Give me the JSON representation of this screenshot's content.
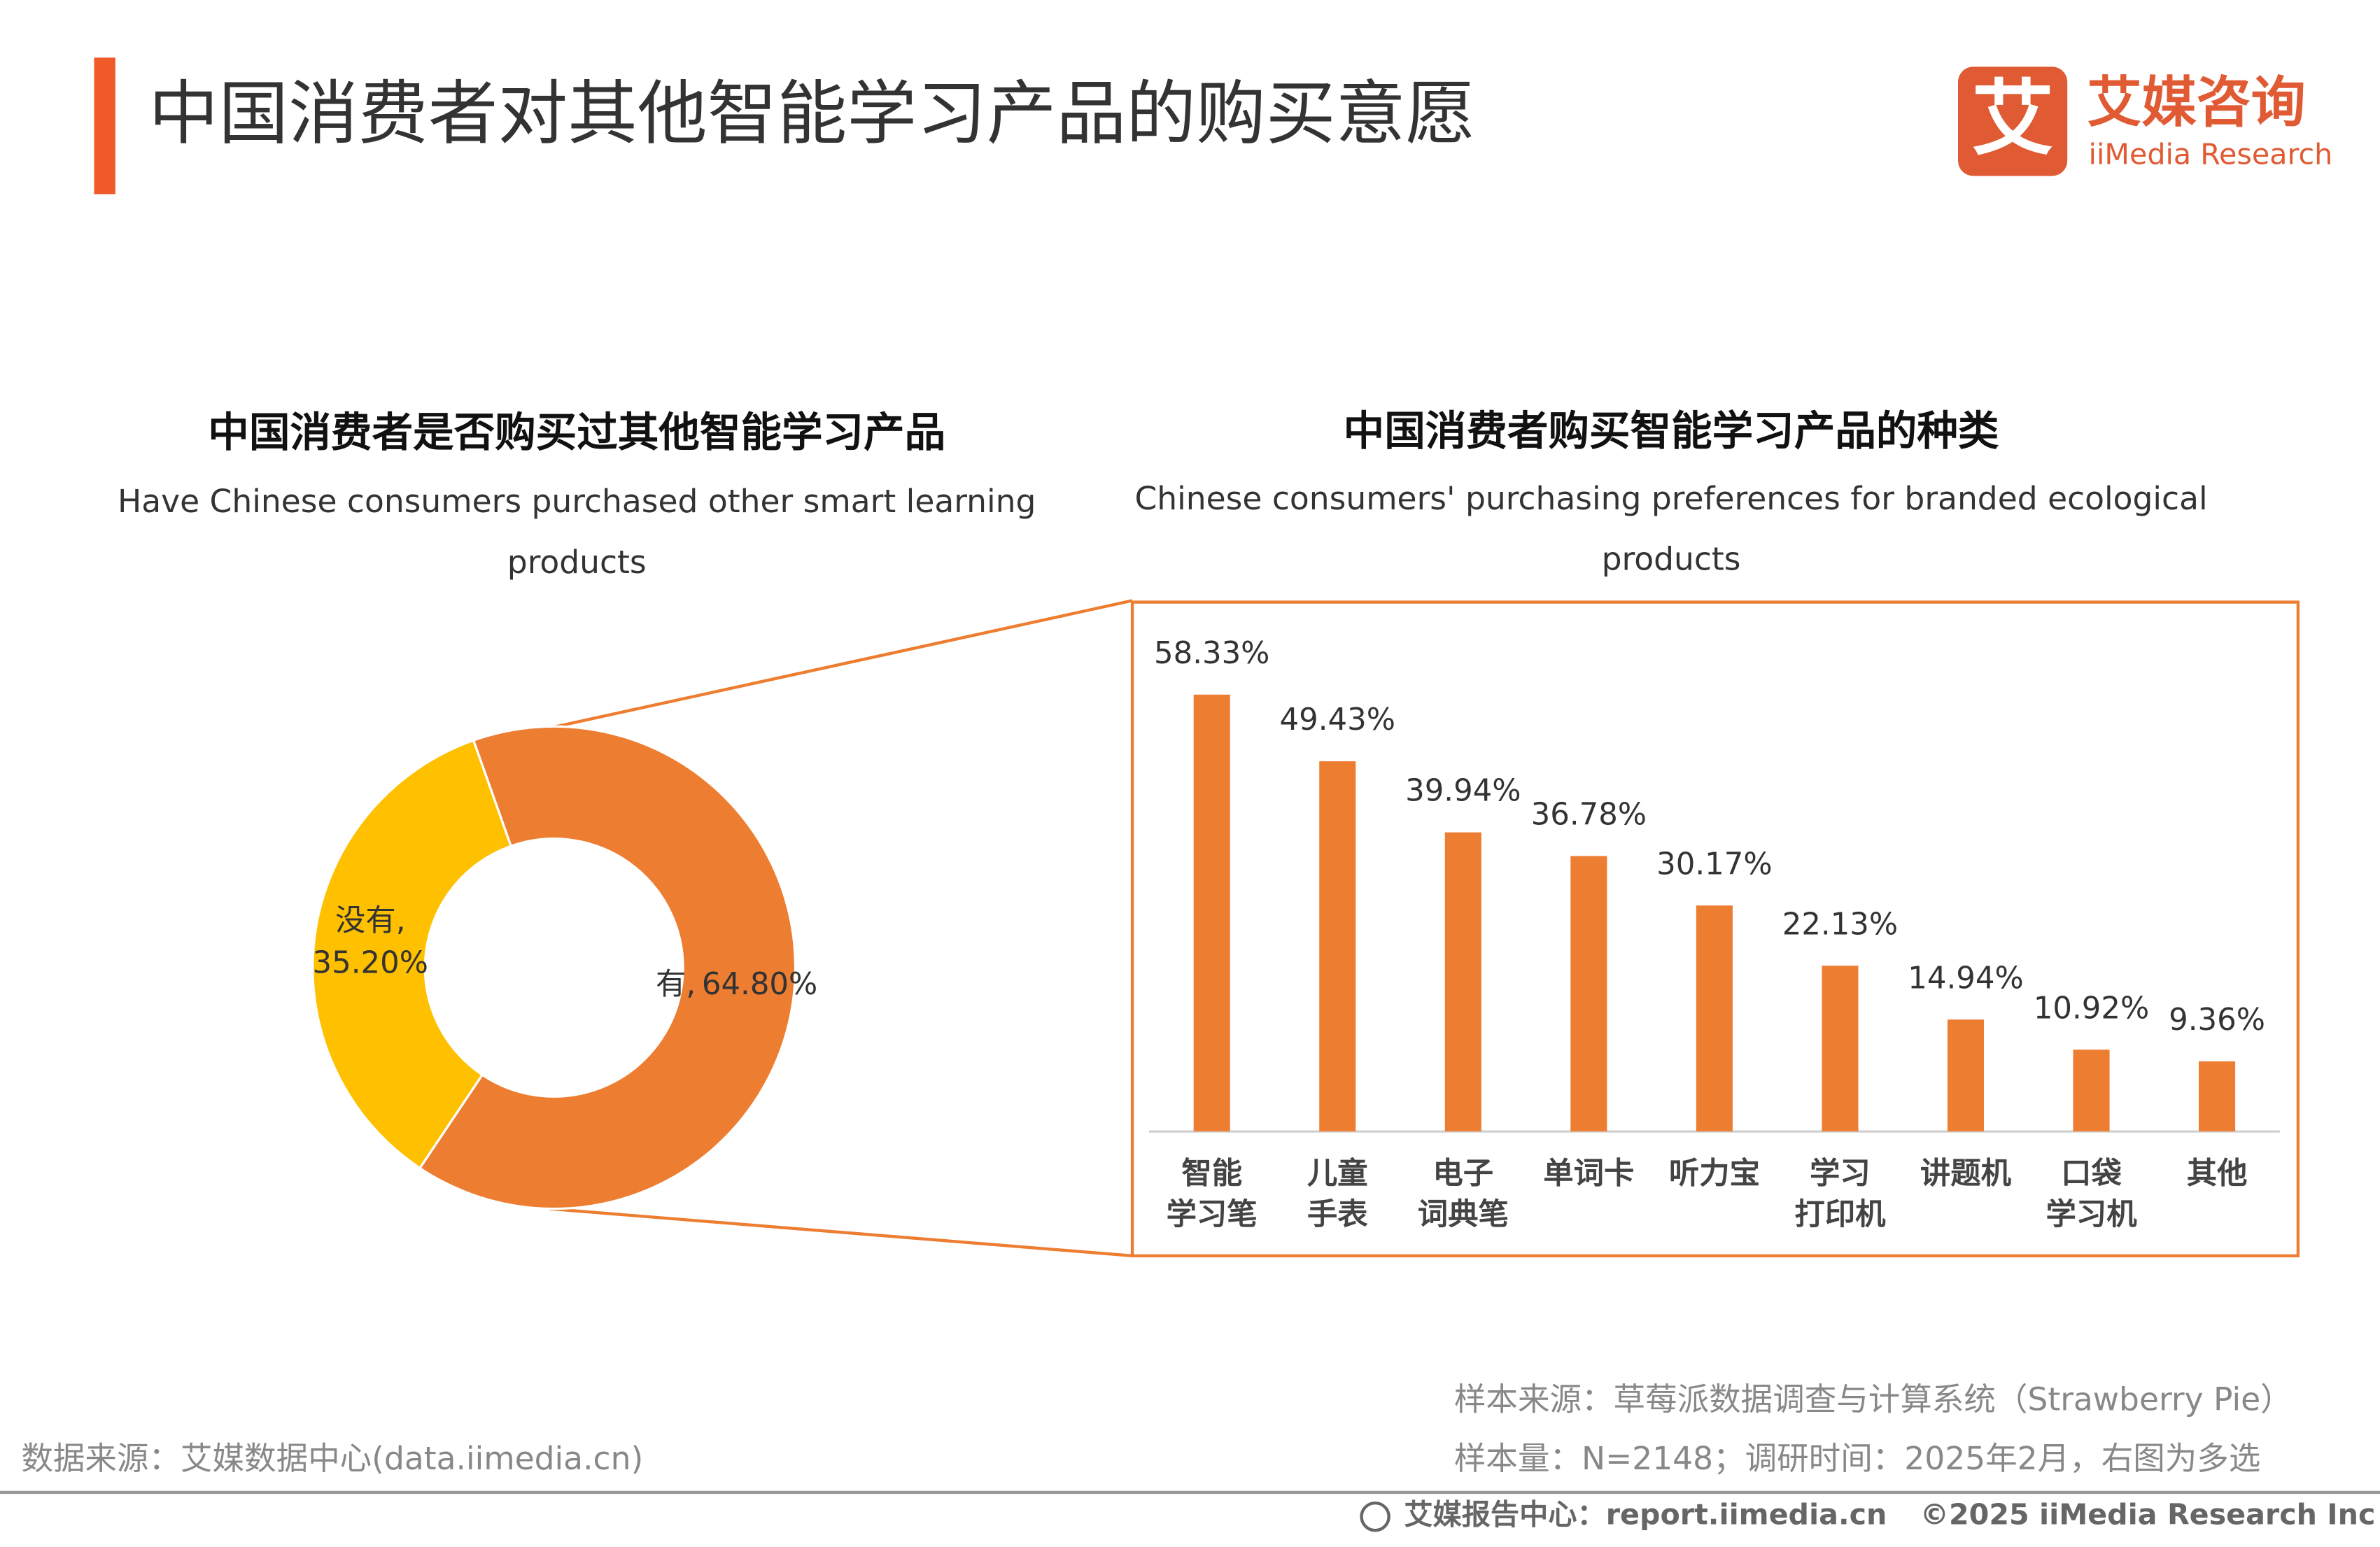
{
  "header": {
    "title": "中国消费者对其他智能学习产品的购买意愿",
    "logo_icon": "艾",
    "logo_name": "艾媒咨询",
    "logo_en": "iiMedia Research"
  },
  "chart_data": [
    {
      "type": "donut",
      "title": "中国消费者是否购买过其他智能学习产品",
      "subtitle": [
        "Have Chinese consumers purchased other smart learning",
        "products"
      ],
      "categories": [
        "有,",
        "没有,"
      ],
      "values": [
        64.8,
        35.2
      ],
      "value_labels": [
        "64.80%",
        "35.20%"
      ],
      "colors": [
        "#ED7D31",
        "#FFC000"
      ]
    },
    {
      "type": "bar",
      "title": "中国消费者购买智能学习产品的种类",
      "subtitle": [
        "Chinese consumers' purchasing preferences for branded ecological",
        "products"
      ],
      "categories": [
        [
          "智能",
          "学习笔"
        ],
        [
          "儿童",
          "手表"
        ],
        [
          "电子",
          "词典笔"
        ],
        [
          "单词卡"
        ],
        [
          "听力宝"
        ],
        [
          "学习",
          "打印机"
        ],
        [
          "讲题机"
        ],
        [
          "口袋",
          "学习机"
        ],
        [
          "其他"
        ]
      ],
      "values": [
        58.33,
        49.43,
        39.94,
        36.78,
        30.17,
        22.13,
        14.94,
        10.92,
        9.36
      ],
      "value_labels": [
        "58.33%",
        "49.43%",
        "39.94%",
        "36.78%",
        "30.17%",
        "22.13%",
        "14.94%",
        "10.92%",
        "9.36%"
      ],
      "color": "#ED7D31"
    }
  ],
  "footer": {
    "data_source": "数据来源：艾媒数据中心(data.iimedia.cn)",
    "sample_source": "样本来源：草莓派数据调查与计算系统（Strawberry Pie）",
    "sample_size": "样本量：N=2148；调研时间：2025年2月，右图为多选",
    "report_center": "艾媒报告中心：report.iimedia.cn",
    "copyright": "©2025  iiMedia Research  Inc"
  }
}
